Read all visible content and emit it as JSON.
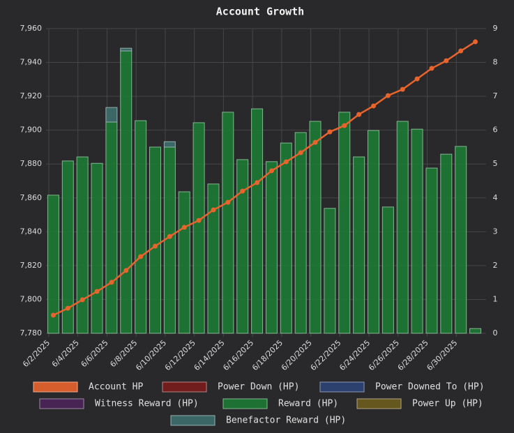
{
  "chart_data": {
    "type": "bar",
    "title": "Account Growth",
    "categories": [
      "6/2/2025",
      null,
      "6/4/2025",
      null,
      "6/6/2025",
      null,
      "6/8/2025",
      null,
      "6/10/2025",
      null,
      "6/12/2025",
      null,
      "6/14/2025",
      null,
      "6/16/2025",
      null,
      "6/18/2025",
      null,
      "6/20/2025",
      null,
      "6/22/2025",
      null,
      "6/24/2025",
      null,
      "6/26/2025",
      null,
      "6/28/2025",
      null,
      "6/30/2025",
      null
    ],
    "ylim": [
      7780,
      7960
    ],
    "yticks": [
      {
        "value": 7780,
        "label": "7,780"
      },
      {
        "value": 7800,
        "label": "7,800"
      },
      {
        "value": 7820,
        "label": "7,820"
      },
      {
        "value": 7840,
        "label": "7,840"
      },
      {
        "value": 7860,
        "label": "7,860"
      },
      {
        "value": 7880,
        "label": "7,880"
      },
      {
        "value": 7900,
        "label": "7,900"
      },
      {
        "value": 7920,
        "label": "7,920"
      },
      {
        "value": 7940,
        "label": "7,940"
      },
      {
        "value": 7960,
        "label": "7,960"
      }
    ],
    "y2lim": [
      0,
      9
    ],
    "y2ticks": [
      0,
      1,
      2,
      3,
      4,
      5,
      6,
      7,
      8,
      9
    ],
    "grid": true,
    "stacked": true,
    "series": [
      {
        "name": "Account HP",
        "type": "line",
        "color": "#e8642c",
        "values": [
          7790.7,
          7794.8,
          7799.8,
          7804.7,
          7810.1,
          7817.1,
          7825.3,
          7831.5,
          7837.2,
          7842.6,
          7846.7,
          7852.9,
          7857.4,
          7864.0,
          7869.0,
          7876.0,
          7881.3,
          7886.7,
          7892.8,
          7899.0,
          7902.7,
          7909.3,
          7914.3,
          7920.4,
          7924.1,
          7930.3,
          7936.5,
          7941.0,
          7946.8,
          7952.2
        ]
      },
      {
        "name": "Power Down (HP)",
        "type": "bar",
        "axis": "y2",
        "color": "#7a1c1c",
        "values": [
          null,
          null,
          null,
          null,
          null,
          null,
          null,
          null,
          null,
          null,
          null,
          null,
          null,
          null,
          null,
          null,
          null,
          null,
          null,
          null,
          null,
          null,
          null,
          null,
          null,
          null,
          null,
          null,
          null,
          null
        ]
      },
      {
        "name": "Power Downed To (HP)",
        "type": "bar",
        "axis": "y2",
        "color": "#2c4475",
        "values": [
          null,
          null,
          null,
          null,
          null,
          null,
          null,
          null,
          null,
          null,
          null,
          null,
          null,
          null,
          null,
          null,
          null,
          null,
          null,
          null,
          null,
          null,
          null,
          null,
          null,
          null,
          null,
          null,
          null,
          null
        ]
      },
      {
        "name": "Witness Reward (HP)",
        "type": "bar",
        "axis": "y2",
        "color": "#4a2458",
        "values": [
          null,
          null,
          null,
          null,
          null,
          null,
          null,
          null,
          null,
          null,
          null,
          null,
          null,
          null,
          null,
          null,
          null,
          null,
          null,
          null,
          null,
          null,
          null,
          null,
          null,
          null,
          null,
          null,
          null,
          null
        ]
      },
      {
        "name": "Reward (HP)",
        "type": "bar",
        "axis": "y2",
        "color": "#1c7a34",
        "values": [
          4.08,
          5.09,
          5.21,
          5.02,
          6.24,
          8.34,
          6.28,
          5.5,
          5.5,
          4.18,
          6.22,
          4.41,
          6.53,
          5.13,
          6.63,
          5.07,
          5.62,
          5.93,
          6.26,
          3.69,
          6.53,
          5.21,
          5.99,
          3.73,
          6.26,
          6.03,
          4.88,
          5.29,
          5.52,
          0.14
        ]
      },
      {
        "name": "Power Up (HP)",
        "type": "bar",
        "axis": "y2",
        "color": "#6b5c1c",
        "values": [
          null,
          null,
          null,
          null,
          null,
          null,
          null,
          null,
          null,
          null,
          null,
          null,
          null,
          null,
          null,
          null,
          null,
          null,
          null,
          null,
          null,
          null,
          null,
          null,
          null,
          null,
          null,
          null,
          null,
          null
        ]
      },
      {
        "name": "Benefactor Reward (HP)",
        "type": "bar",
        "axis": "y2",
        "color": "#3e6e6e",
        "values": [
          null,
          null,
          null,
          null,
          0.43,
          0.08,
          null,
          null,
          0.16,
          null,
          null,
          null,
          null,
          null,
          null,
          null,
          null,
          null,
          null,
          null,
          null,
          null,
          null,
          null,
          null,
          null,
          null,
          null,
          null,
          null
        ]
      }
    ]
  }
}
